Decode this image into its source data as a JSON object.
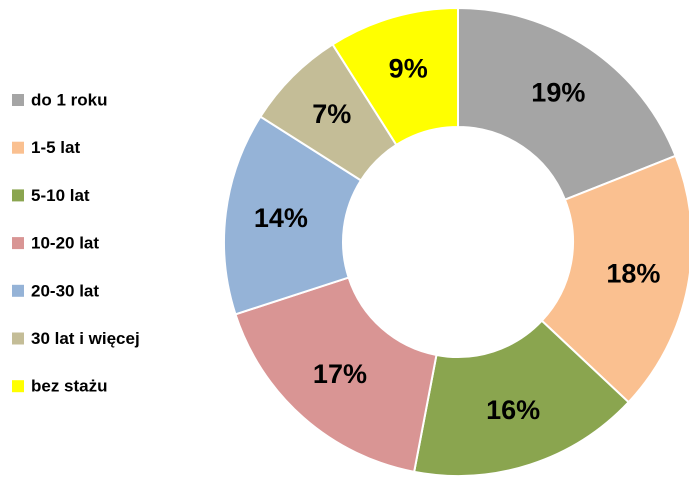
{
  "chart_data": {
    "type": "donut",
    "categories": [
      "do 1 roku",
      "1-5 lat",
      "5-10 lat",
      "10-20 lat",
      "20-30 lat",
      "30 lat i więcej",
      "bez stażu"
    ],
    "values": [
      19,
      18,
      16,
      17,
      14,
      7,
      9
    ],
    "value_labels": [
      "19%",
      "18%",
      "16%",
      "17%",
      "14%",
      "7%",
      "9%"
    ],
    "colors": [
      "#a5a5a5",
      "#fac090",
      "#8aa54f",
      "#d99594",
      "#95b3d7",
      "#c4bd97",
      "#ffff00"
    ],
    "legend": "left"
  }
}
